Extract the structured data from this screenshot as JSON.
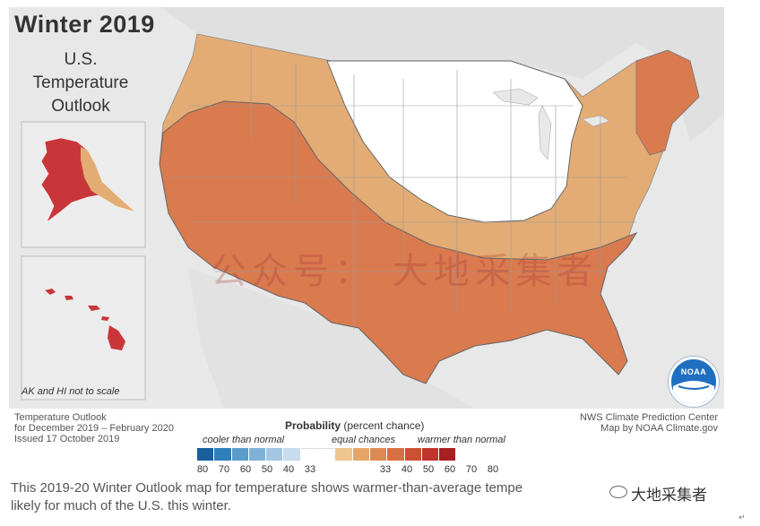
{
  "title": {
    "main": "Winter 2019",
    "line1": "U.S.",
    "line2": "Temperature",
    "line3": "Outlook"
  },
  "inset_note": "AK and HI not to scale",
  "footer_left": {
    "line1": "Temperature Outlook",
    "line2": "for December 2019 – February 2020",
    "line3": "Issued 17 October 2019"
  },
  "footer_right": {
    "line1": "NWS Climate Prediction Center",
    "line2": "Map by NOAA Climate.gov"
  },
  "logo_text": "NOAA",
  "legend": {
    "title_bold": "Probability",
    "title_rest": "(percent chance)",
    "cooler": "cooler than normal",
    "equal": "equal chances",
    "warmer": "warmer than normal",
    "colors": [
      "#1a5e9c",
      "#2f7fbc",
      "#5a9ccb",
      "#7fb2d6",
      "#a4c6e0",
      "#c8dbec",
      "#ffffff",
      "#ffffff",
      "#eec48f",
      "#e6a66a",
      "#df8a52",
      "#d86f43",
      "#cc5035",
      "#c0342d",
      "#a81f22"
    ],
    "ticks": [
      "80",
      "70",
      "60",
      "50",
      "40",
      "33",
      "33",
      "40",
      "50",
      "60",
      "70",
      "80"
    ]
  },
  "map_colors": {
    "light_orange": "#e3ac74",
    "orange": "#da7a4f",
    "dark_red": "#c9363a",
    "equal_white": "#ffffff",
    "land_outside": "#e0e0e0",
    "water": "#ececec"
  },
  "watermark": "公众号： 大地采集者",
  "caption": {
    "line1": "This 2019-20 Winter Outlook map for temperature shows warmer-than-average tempe",
    "line2": "likely for much of the U.S. this winter."
  },
  "wechat_label": "大地采集者",
  "corner_mark": "↵"
}
